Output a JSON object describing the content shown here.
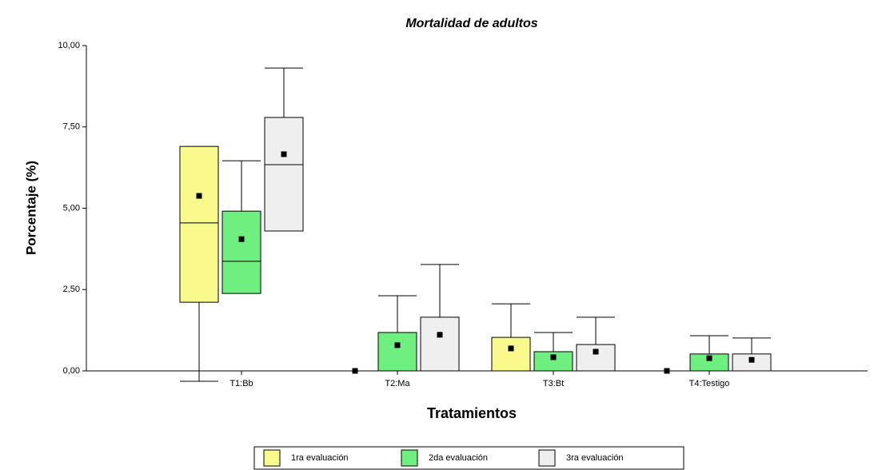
{
  "chart_data": {
    "type": "box",
    "title": "Mortalidad de adultos",
    "x_label": "Tratamientos",
    "y_label": "Porcentaje (%)",
    "categories": [
      "T1:Bb",
      "T2:Ma",
      "T3:Bt",
      "T4:Testigo"
    ],
    "ylim": [
      0,
      10
    ],
    "yticks": [
      {
        "value": 0,
        "label": "0,00"
      },
      {
        "value": 2.5,
        "label": "2,50"
      },
      {
        "value": 5,
        "label": "5,00"
      },
      {
        "value": 7.5,
        "label": "7,50"
      },
      {
        "value": 10,
        "label": "10,00"
      }
    ],
    "series": [
      {
        "name": "1ra evaluación",
        "color": "#fafa8c",
        "min": [
          -0.32,
          0,
          0,
          0
        ],
        "q1": [
          2.11,
          0,
          0,
          0
        ],
        "median": [
          4.55,
          0,
          0,
          0
        ],
        "q3": [
          6.9,
          0,
          1.03,
          0
        ],
        "max": [
          6.9,
          0,
          2.06,
          0
        ],
        "mean": [
          5.38,
          0,
          0.69,
          0
        ]
      },
      {
        "name": "2da evaluación",
        "color": "#6fef7f",
        "min": [
          2.38,
          0,
          0,
          0
        ],
        "q1": [
          2.38,
          0,
          0,
          0
        ],
        "median": [
          3.37,
          0,
          0,
          0
        ],
        "q3": [
          4.91,
          1.18,
          0.59,
          0.52
        ],
        "max": [
          6.46,
          2.31,
          1.18,
          1.08
        ],
        "mean": [
          4.05,
          0.79,
          0.42,
          0.39
        ]
      },
      {
        "name": "3ra evaluación",
        "color": "#efefef",
        "min": [
          4.3,
          0,
          0,
          0
        ],
        "q1": [
          4.3,
          0,
          0,
          0
        ],
        "median": [
          6.34,
          0,
          0,
          0
        ],
        "q3": [
          7.79,
          1.65,
          0.81,
          0.52
        ],
        "max": [
          9.31,
          3.27,
          1.65,
          1.01
        ],
        "mean": [
          6.66,
          1.11,
          0.59,
          0.34
        ]
      }
    ]
  }
}
